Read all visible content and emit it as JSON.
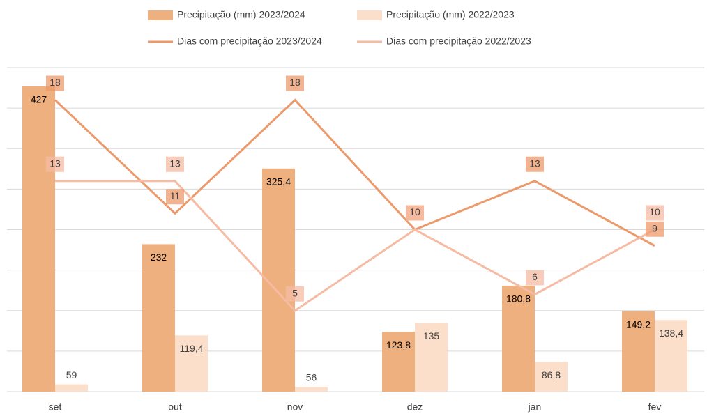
{
  "chart_data": {
    "type": "bar",
    "categories": [
      "set",
      "out",
      "nov",
      "dez",
      "jan",
      "fev"
    ],
    "series": [
      {
        "name": "Precipitação (mm) 2023/2024",
        "type": "bar",
        "color": "#efb07f",
        "values": [
          427,
          232,
          325.4,
          123.8,
          180.8,
          149.2
        ],
        "value_labels": [
          "427",
          "232",
          "325,4",
          "123,8",
          "180,8",
          "149,2"
        ]
      },
      {
        "name": "Precipitação (mm) 2022/2023",
        "type": "bar",
        "color": "#fcdfca",
        "values": [
          59,
          119.4,
          56,
          135,
          86.8,
          138.4
        ],
        "value_labels": [
          "59",
          "119,4",
          "56",
          "135",
          "86,8",
          "138,4"
        ]
      },
      {
        "name": "Dias com precipitação 2023/2024",
        "type": "line",
        "axis": "y2",
        "color": "#ec9a6b",
        "values": [
          18,
          11,
          18,
          10,
          13,
          9
        ]
      },
      {
        "name": "Dias com precipitação 2022/2023",
        "type": "line",
        "axis": "y2",
        "color": "#f5bba3",
        "values": [
          13,
          13,
          5,
          10,
          6,
          10
        ]
      }
    ],
    "ylim": [
      50,
      450
    ],
    "yticks": [
      50,
      100,
      150,
      200,
      250,
      300,
      350,
      400,
      450
    ],
    "y2lim": [
      0,
      20
    ],
    "grid": true
  }
}
